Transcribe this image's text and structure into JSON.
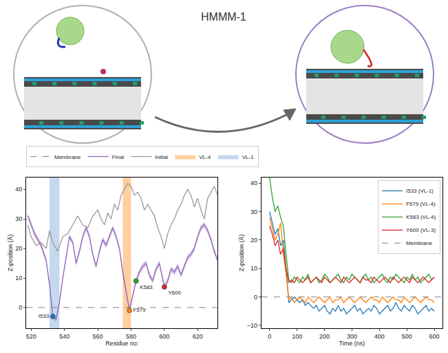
{
  "title": "HMMM-1",
  "chart_data": [
    {
      "type": "line",
      "x_label": "Residue no:",
      "y_label": "Z-position (Å)",
      "xlim": [
        517,
        632
      ],
      "xticks": [
        520,
        540,
        560,
        580,
        600,
        620
      ],
      "ylim": [
        -7,
        44
      ],
      "yticks": [
        0,
        10,
        20,
        30,
        40
      ],
      "grid": false,
      "legend": "top",
      "reference_line": {
        "name": "Membrane",
        "value": 0,
        "color": "#808080",
        "line_style": "dashed"
      },
      "spans": [
        {
          "name": "VL-1",
          "x": [
            531,
            537
          ],
          "color": "#aec7e8"
        },
        {
          "name": "VL-4",
          "x": [
            575,
            580
          ],
          "color": "#ffbb78"
        }
      ],
      "series": [
        {
          "name": "Initial",
          "color": "#999999",
          "x": [
            518,
            520,
            523,
            526,
            529,
            531,
            533,
            536,
            539,
            542,
            545,
            548,
            551,
            554,
            557,
            560,
            562,
            564,
            566,
            568,
            570,
            572,
            574,
            576,
            578,
            580,
            582,
            584,
            586,
            588,
            590,
            592,
            594,
            596,
            598,
            600,
            602,
            604,
            606,
            608,
            610,
            612,
            614,
            616,
            618,
            620,
            622,
            624,
            626,
            628,
            630,
            632
          ],
          "values": [
            28,
            24,
            21,
            22,
            20,
            26,
            22,
            19,
            24,
            25,
            28,
            31,
            28,
            27,
            31,
            33,
            30,
            28,
            32,
            30,
            35,
            33,
            38,
            40,
            42,
            41,
            38,
            39,
            37,
            33,
            35,
            33,
            31,
            27,
            24,
            20,
            25,
            28,
            30,
            33,
            35,
            38,
            40,
            38,
            34,
            37,
            33,
            30,
            37,
            39,
            41,
            38
          ]
        },
        {
          "name": "Final",
          "color": "#9467bd",
          "error": 1,
          "x": [
            518,
            522,
            526,
            529,
            531,
            533,
            535,
            537,
            539,
            541,
            543,
            545,
            547,
            549,
            551,
            553,
            555,
            557,
            559,
            561,
            563,
            565,
            567,
            569,
            571,
            573,
            575,
            577,
            579,
            581,
            583,
            585,
            587,
            589,
            591,
            593,
            595,
            597,
            599,
            600,
            602,
            604,
            606,
            608,
            610,
            612,
            614,
            616,
            618,
            620,
            622,
            624,
            626,
            628,
            630,
            632
          ],
          "values": [
            31,
            25,
            21,
            16,
            8,
            -3,
            -4,
            2,
            10,
            17,
            24,
            22,
            15,
            19,
            24,
            27,
            24,
            18,
            14,
            19,
            23,
            21,
            24,
            27,
            24,
            20,
            12,
            5,
            -1,
            4,
            9,
            12,
            14,
            15,
            11,
            9,
            13,
            15,
            10,
            7,
            9,
            13,
            12,
            14,
            11,
            14,
            17,
            18,
            20,
            24,
            27,
            28,
            26,
            23,
            19,
            16
          ]
        }
      ],
      "points": [
        {
          "label": "I533",
          "x": 533,
          "y": -3,
          "color": "#1f77b4"
        },
        {
          "label": "F579",
          "x": 579,
          "y": -1,
          "color": "#ff7f0e"
        },
        {
          "label": "K583",
          "x": 583,
          "y": 9,
          "color": "#2ca02c"
        },
        {
          "label": "Y600",
          "x": 600,
          "y": 7,
          "color": "#d62728"
        }
      ]
    },
    {
      "type": "line",
      "x_label": "Time (ns)",
      "y_label": "Z-position (Å)",
      "xlim": [
        -30,
        630
      ],
      "xticks": [
        0,
        100,
        200,
        300,
        400,
        500,
        600
      ],
      "ylim": [
        -11,
        42
      ],
      "yticks": [
        {
          "value": -10,
          "label": "−10"
        },
        0,
        10,
        20,
        30,
        40
      ],
      "grid": false,
      "legend": "upper right",
      "reference_line": {
        "name": "Membrane",
        "value": 0,
        "color": "#808080",
        "line_style": "dashed"
      },
      "x": [
        0,
        10,
        20,
        30,
        40,
        50,
        60,
        70,
        80,
        90,
        100,
        110,
        120,
        130,
        140,
        150,
        160,
        170,
        180,
        190,
        200,
        210,
        220,
        230,
        240,
        250,
        260,
        270,
        280,
        290,
        300,
        310,
        320,
        330,
        340,
        350,
        360,
        370,
        380,
        390,
        400,
        410,
        420,
        430,
        440,
        450,
        460,
        470,
        480,
        490,
        500,
        510,
        520,
        530,
        540,
        550,
        560,
        570,
        580,
        590,
        600
      ],
      "series": [
        {
          "name": "I533 (VL-1)",
          "color": "#1f77b4",
          "values": [
            30,
            26,
            22,
            24,
            18,
            20,
            10,
            -2,
            -1,
            0,
            -1,
            -2,
            -1,
            -3,
            -2,
            -3,
            -4,
            -3,
            -5,
            -4,
            -3,
            -5,
            -6,
            -4,
            -5,
            -3,
            -5,
            -4,
            -6,
            -5,
            -4,
            -3,
            -5,
            -4,
            -6,
            -5,
            -4,
            -5,
            -3,
            -4,
            -6,
            -5,
            -4,
            -3,
            -5,
            -4,
            -2,
            -4,
            -5,
            -3,
            -4,
            -5,
            -3,
            -4,
            -6,
            -5,
            -4,
            -3,
            -5,
            -4,
            -5
          ]
        },
        {
          "name": "F579 (VL-4)",
          "color": "#ff7f0e",
          "values": [
            28,
            24,
            20,
            22,
            26,
            15,
            8,
            -1,
            0,
            -2,
            -1,
            0,
            -1,
            -2,
            0,
            -1,
            -2,
            -1,
            0,
            -1,
            -2,
            -1,
            0,
            -2,
            -1,
            -1,
            0,
            -2,
            -1,
            0,
            -1,
            -2,
            -1,
            0,
            -1,
            -2,
            -1,
            0,
            -1,
            -1,
            -2,
            0,
            -1,
            -2,
            -1,
            0,
            -1,
            -1,
            -2,
            0,
            -1,
            -2,
            -1,
            0,
            -1,
            -2,
            -1,
            0,
            -1,
            -1,
            -2
          ]
        },
        {
          "name": "K583 (VL-4)",
          "color": "#2ca02c",
          "values": [
            42,
            35,
            30,
            32,
            28,
            25,
            15,
            6,
            5,
            7,
            6,
            5,
            7,
            6,
            8,
            5,
            6,
            7,
            5,
            6,
            8,
            7,
            5,
            6,
            7,
            8,
            6,
            5,
            7,
            6,
            8,
            7,
            6,
            5,
            7,
            8,
            6,
            7,
            5,
            6,
            7,
            8,
            6,
            5,
            7,
            6,
            8,
            7,
            6,
            5,
            7,
            6,
            8,
            6,
            7,
            5,
            6,
            7,
            8,
            6,
            7
          ]
        },
        {
          "name": "Y600 (VL-3)",
          "color": "#d62728",
          "values": [
            25,
            22,
            18,
            20,
            15,
            17,
            10,
            5,
            6,
            5,
            7,
            6,
            5,
            6,
            7,
            5,
            6,
            7,
            6,
            5,
            7,
            6,
            5,
            6,
            7,
            6,
            5,
            7,
            6,
            5,
            6,
            7,
            6,
            5,
            7,
            6,
            6,
            5,
            7,
            6,
            5,
            6,
            7,
            6,
            5,
            7,
            6,
            5,
            6,
            7,
            6,
            5,
            7,
            6,
            5,
            6,
            7,
            6,
            5,
            6,
            7
          ]
        }
      ]
    }
  ]
}
